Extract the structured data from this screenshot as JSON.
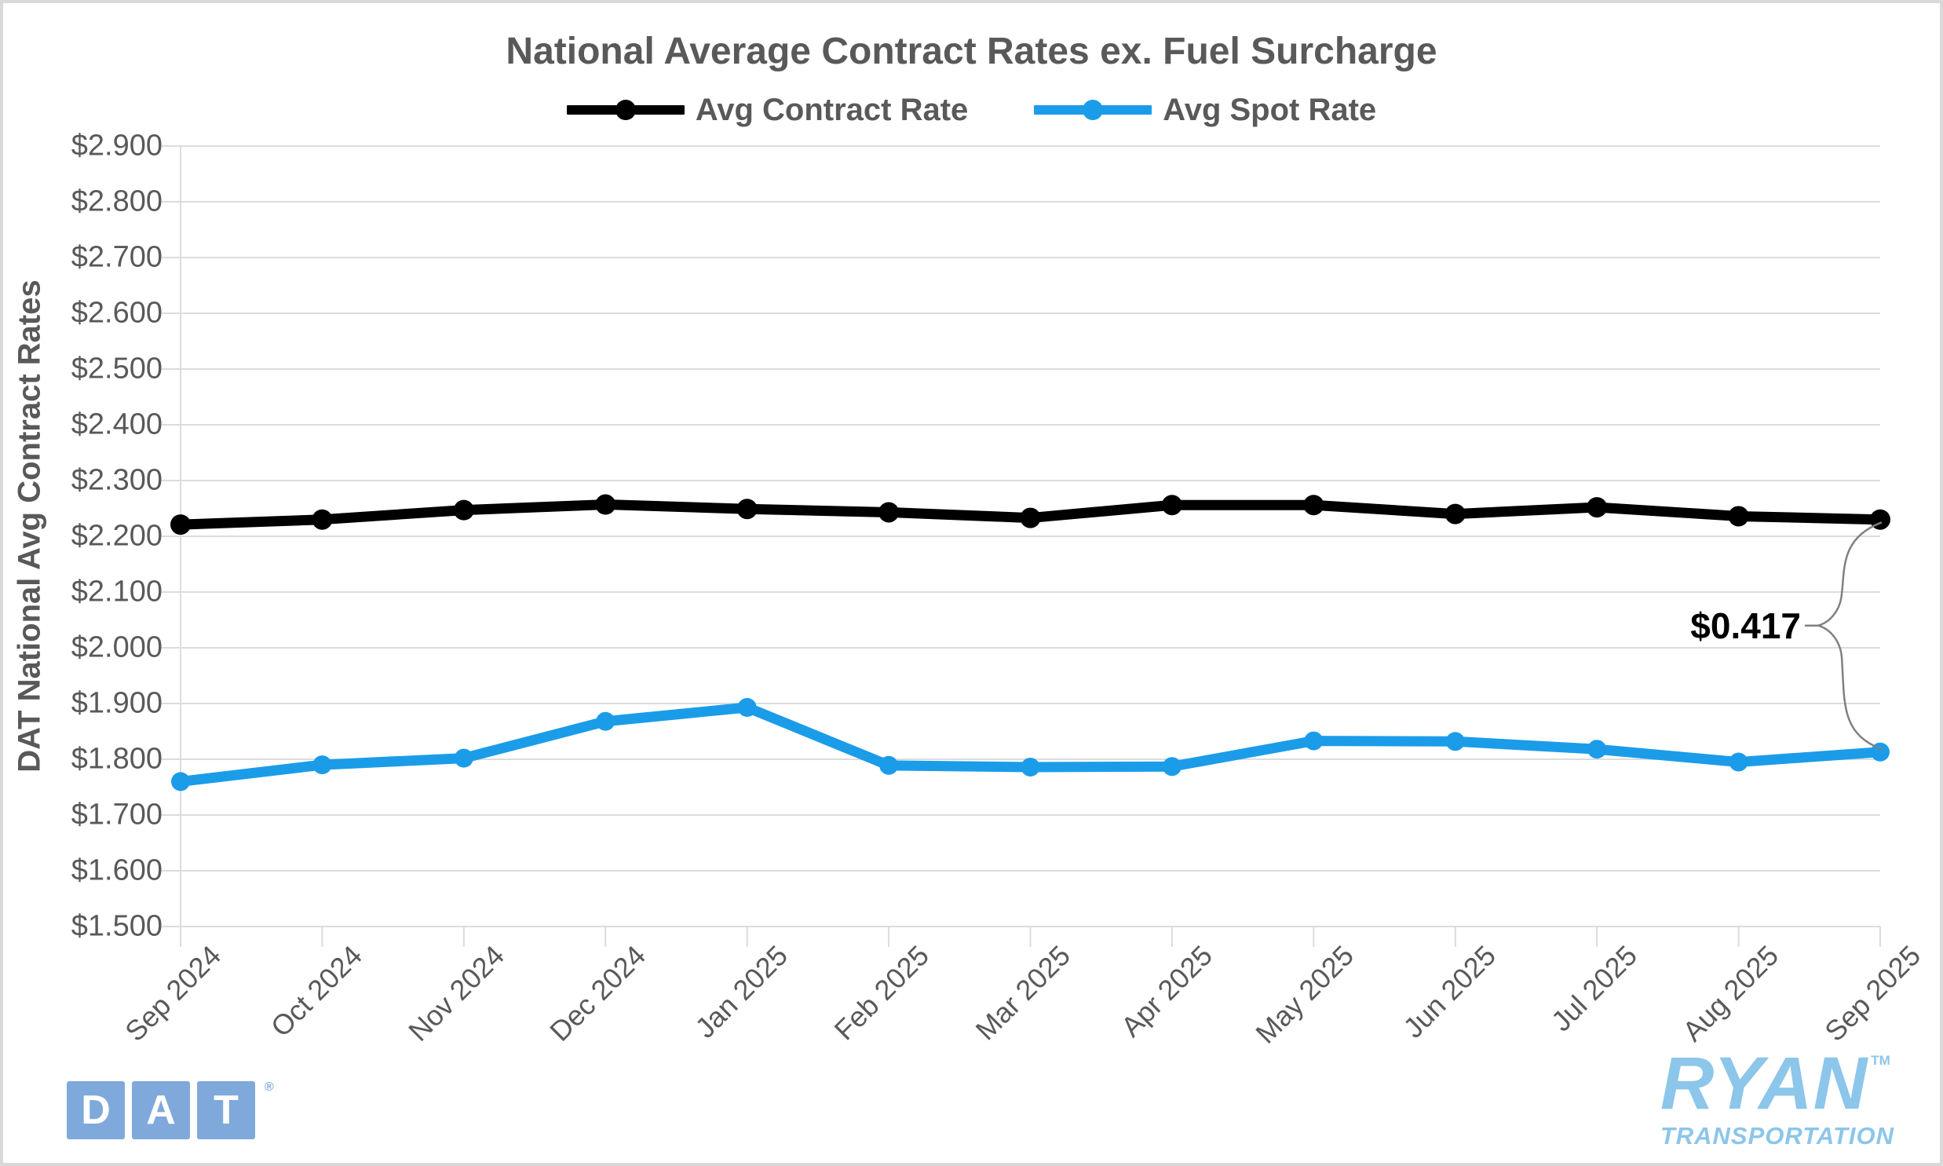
{
  "colors": {
    "contract_line": "#000000",
    "spot_line": "#1B9CE9",
    "axis_text": "#595959",
    "gridline": "#DCDCDC",
    "brace": "#808080",
    "dat_blue": "#7FA9DA",
    "ryan_blue": "#8CC6EA"
  },
  "logos": {
    "dat": {
      "letters": [
        "D",
        "A",
        "T"
      ],
      "registered": "®"
    },
    "ryan": {
      "name": "RYAN",
      "tm": "TM",
      "subtitle": "TRANSPORTATION"
    }
  },
  "chart_data": {
    "type": "line",
    "title": "National Average Contract Rates ex. Fuel Surcharge",
    "ylabel": "DAT National Avg Contract Rates",
    "xlabel": "",
    "x": [
      "Sep 2024",
      "Oct 2024",
      "Nov 2024",
      "Dec 2024",
      "Jan 2025",
      "Feb 2025",
      "Mar 2025",
      "Apr 2025",
      "May 2025",
      "Jun 2025",
      "Jul 2025",
      "Aug 2025",
      "Sep 2025"
    ],
    "series": [
      {
        "name": "Avg Contract Rate",
        "color": "#000000",
        "values": [
          2.221,
          2.23,
          2.247,
          2.257,
          2.249,
          2.243,
          2.233,
          2.256,
          2.256,
          2.24,
          2.252,
          2.236,
          2.23
        ]
      },
      {
        "name": "Avg Spot Rate",
        "color": "#1B9CE9",
        "values": [
          1.76,
          1.79,
          1.802,
          1.868,
          1.893,
          1.789,
          1.786,
          1.787,
          1.833,
          1.832,
          1.818,
          1.795,
          1.813
        ]
      }
    ],
    "ylim": [
      1.5,
      2.9
    ],
    "y_tick_step": 0.1,
    "y_ticks": [
      "$2.900",
      "$2.800",
      "$2.700",
      "$2.600",
      "$2.500",
      "$2.400",
      "$2.300",
      "$2.200",
      "$2.100",
      "$2.000",
      "$1.900",
      "$1.800",
      "$1.700",
      "$1.600",
      "$1.500"
    ],
    "grid": "horizontal",
    "legend_position": "top",
    "annotation": {
      "text": "$0.417",
      "meaning": "gap between last contract and spot points"
    }
  }
}
